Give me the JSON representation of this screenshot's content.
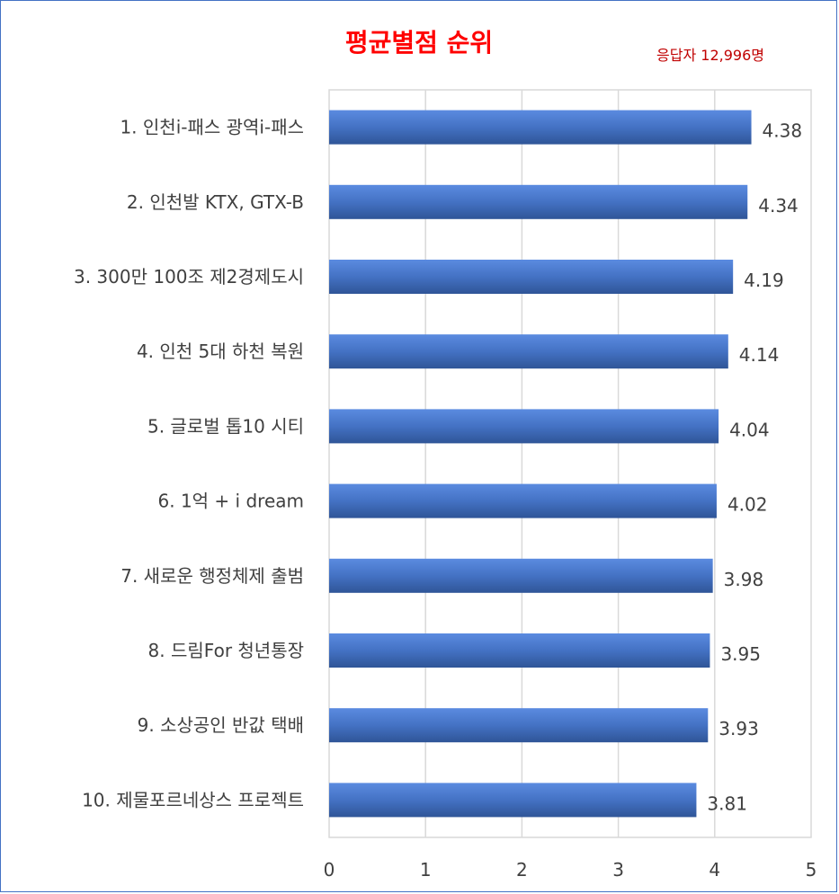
{
  "chart_data": {
    "type": "bar",
    "orientation": "horizontal",
    "title": "평균별점 순위",
    "note": "응답자 12,996명",
    "categories": [
      "1. 인천i-패스 광역i-패스",
      "2. 인천발 KTX, GTX-B",
      "3. 300만 100조 제2경제도시",
      "4. 인천 5대 하천 복원",
      "5. 글로벌 톱10 시티",
      "6. 1억 + i dream",
      "7. 새로운 행정체제 출범",
      "8. 드림For 청년통장",
      "9. 소상공인 반값 택배",
      "10. 제물포르네상스 프로젝트"
    ],
    "values": [
      4.38,
      4.34,
      4.19,
      4.14,
      4.04,
      4.02,
      3.98,
      3.95,
      3.93,
      3.81
    ],
    "value_labels": [
      "4.38",
      "4.34",
      "4.19",
      "4.14",
      "4.04",
      "4.02",
      "3.98",
      "3.95",
      "3.93",
      "3.81"
    ],
    "xlim": [
      0,
      5
    ],
    "xticks": [
      "0",
      "1",
      "2",
      "3",
      "4",
      "5"
    ],
    "grid": true,
    "bar_color": "#4472c4",
    "bar_color_light": "#5b8be0",
    "bar_color_dark": "#2f5597",
    "title_color": "#ff0000",
    "note_color": "#c00000"
  }
}
